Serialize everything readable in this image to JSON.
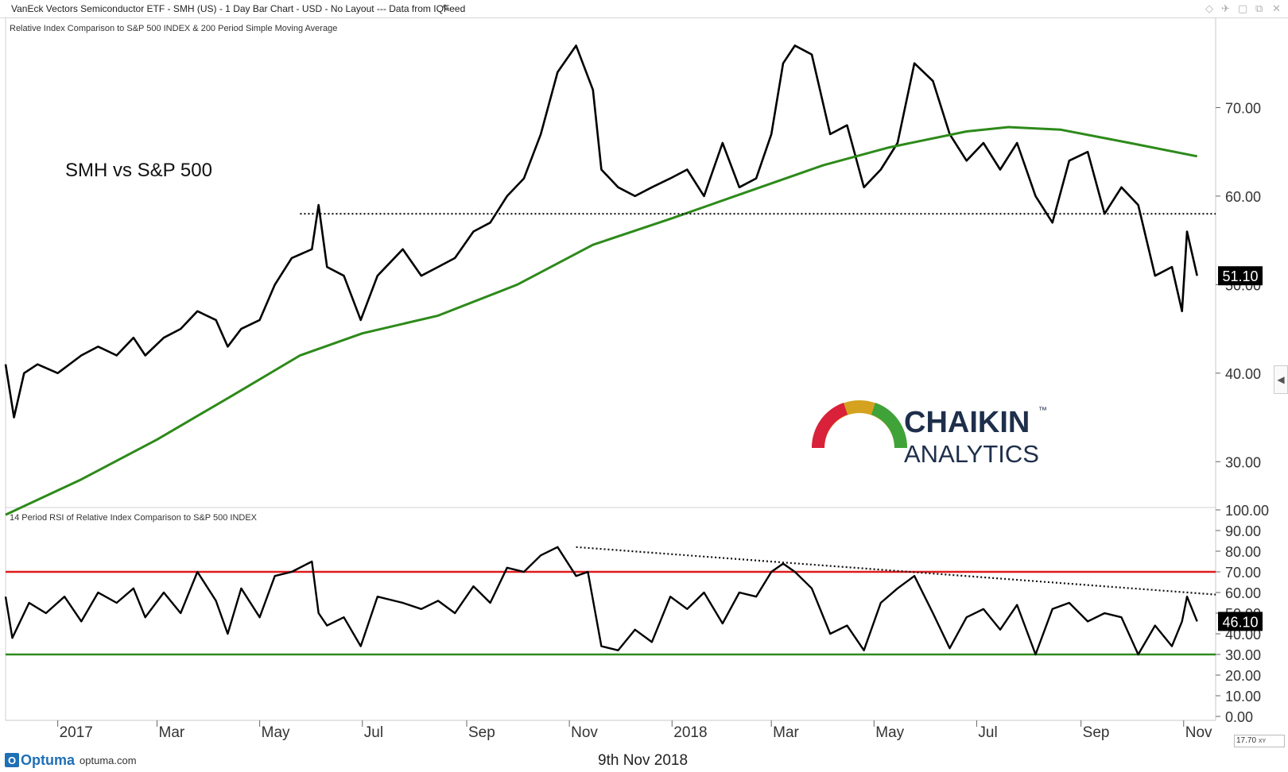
{
  "header": {
    "title": "VanEck Vectors Semiconductor ETF - SMH (US) - 1 Day Bar Chart - USD - No Layout --- Data from IQFeed",
    "icons": [
      "edit-icon",
      "diamond-icon",
      "pin-icon",
      "minimize-icon",
      "restore-icon",
      "close-icon"
    ]
  },
  "footer": {
    "brand": "Optuma",
    "url": "optuma.com",
    "date": "9th Nov 2018",
    "zoom": "17.70",
    "zoom_suffix": "XY"
  },
  "watermark": {
    "brand_line1": "CHAIKIN",
    "tm": "™",
    "brand_line2": "ANALYTICS"
  },
  "chart_data": [
    {
      "type": "line",
      "title": "Relative Index Comparison to S&P 500 INDEX & 200 Period Simple Moving Average",
      "annotation": "SMH vs S&P 500",
      "ylim": [
        25,
        80
      ],
      "yticks": [
        "70.00",
        "60.00",
        "50.00",
        "40.00",
        "30.00"
      ],
      "ytick_values": [
        70,
        60,
        50,
        40,
        30
      ],
      "last_value": "51.10",
      "grid": false,
      "series": [
        {
          "color": "#000000",
          "x": [
            "2016-12-01",
            "2016-12-06",
            "2016-12-12",
            "2016-12-20",
            "2017-01-01",
            "2017-01-15",
            "2017-01-25",
            "2017-02-05",
            "2017-02-15",
            "2017-02-22",
            "2017-03-05",
            "2017-03-15",
            "2017-03-25",
            "2017-04-05",
            "2017-04-12",
            "2017-04-20",
            "2017-05-01",
            "2017-05-10",
            "2017-05-20",
            "2017-06-01",
            "2017-06-05",
            "2017-06-10",
            "2017-06-20",
            "2017-06-30",
            "2017-07-10",
            "2017-07-25",
            "2017-08-05",
            "2017-08-15",
            "2017-08-25",
            "2017-09-05",
            "2017-09-15",
            "2017-09-25",
            "2017-10-05",
            "2017-10-15",
            "2017-10-25",
            "2017-11-05",
            "2017-11-15",
            "2017-11-20",
            "2017-11-30",
            "2017-12-10",
            "2017-12-20",
            "2017-12-31",
            "2018-01-10",
            "2018-01-20",
            "2018-01-31",
            "2018-02-10",
            "2018-02-20",
            "2018-03-01",
            "2018-03-08",
            "2018-03-15",
            "2018-03-25",
            "2018-04-05",
            "2018-04-15",
            "2018-04-25",
            "2018-05-05",
            "2018-05-15",
            "2018-05-25",
            "2018-06-05",
            "2018-06-15",
            "2018-06-25",
            "2018-07-05",
            "2018-07-15",
            "2018-07-25",
            "2018-08-05",
            "2018-08-15",
            "2018-08-25",
            "2018-09-05",
            "2018-09-15",
            "2018-09-25",
            "2018-10-05",
            "2018-10-15",
            "2018-10-25",
            "2018-10-31",
            "2018-11-03",
            "2018-11-09"
          ],
          "values": [
            41,
            35,
            40,
            41,
            40,
            42,
            43,
            42,
            44,
            42,
            44,
            45,
            47,
            46,
            43,
            45,
            46,
            50,
            53,
            54,
            59,
            52,
            51,
            46,
            51,
            54,
            51,
            52,
            53,
            56,
            57,
            60,
            62,
            67,
            74,
            77,
            72,
            63,
            61,
            60,
            61,
            62,
            63,
            60,
            66,
            61,
            62,
            67,
            75,
            77,
            76,
            67,
            68,
            61,
            63,
            66,
            75,
            73,
            67,
            64,
            66,
            63,
            66,
            60,
            57,
            64,
            65,
            58,
            61,
            59,
            51,
            52,
            47,
            56,
            51
          ]
        },
        {
          "color": "#2d8a1a",
          "x": [
            "2016-12-01",
            "2017-01-15",
            "2017-03-01",
            "2017-04-15",
            "2017-05-25",
            "2017-07-01",
            "2017-08-15",
            "2017-10-01",
            "2017-11-15",
            "2018-01-01",
            "2018-02-15",
            "2018-04-01",
            "2018-05-10",
            "2018-06-25",
            "2018-07-20",
            "2018-08-20",
            "2018-09-30",
            "2018-11-09"
          ],
          "values": [
            24.0,
            28.0,
            32.5,
            37.5,
            42.0,
            44.5,
            46.5,
            50.0,
            54.5,
            57.5,
            60.5,
            63.5,
            65.5,
            67.3,
            67.8,
            67.5,
            66.0,
            64.5
          ]
        }
      ],
      "reference_line": {
        "style": "dotted",
        "value": 58,
        "from": "2017-05-25",
        "to": "2018-11-20"
      }
    },
    {
      "type": "line",
      "title": "14 Period RSI of Relative Index Comparison to S&P 500 INDEX",
      "ylim": [
        0,
        100
      ],
      "yticks": [
        "100.00",
        "90.00",
        "80.00",
        "70.00",
        "60.00",
        "50.00",
        "40.00",
        "30.00",
        "20.00",
        "10.00",
        "0.00"
      ],
      "ytick_values": [
        100,
        90,
        80,
        70,
        60,
        50,
        40,
        30,
        20,
        10,
        0
      ],
      "last_value": "46.10",
      "series": [
        {
          "color": "#000000",
          "x": [
            "2016-12-01",
            "2016-12-05",
            "2016-12-15",
            "2016-12-25",
            "2017-01-05",
            "2017-01-15",
            "2017-01-25",
            "2017-02-05",
            "2017-02-15",
            "2017-02-22",
            "2017-03-05",
            "2017-03-15",
            "2017-03-25",
            "2017-04-05",
            "2017-04-12",
            "2017-04-20",
            "2017-05-01",
            "2017-05-10",
            "2017-05-20",
            "2017-06-01",
            "2017-06-05",
            "2017-06-10",
            "2017-06-20",
            "2017-06-30",
            "2017-07-10",
            "2017-07-25",
            "2017-08-05",
            "2017-08-15",
            "2017-08-25",
            "2017-09-05",
            "2017-09-15",
            "2017-09-25",
            "2017-10-05",
            "2017-10-15",
            "2017-10-25",
            "2017-11-05",
            "2017-11-12",
            "2017-11-20",
            "2017-11-30",
            "2017-12-10",
            "2017-12-20",
            "2017-12-31",
            "2018-01-10",
            "2018-01-20",
            "2018-01-31",
            "2018-02-10",
            "2018-02-20",
            "2018-03-01",
            "2018-03-08",
            "2018-03-15",
            "2018-03-25",
            "2018-04-05",
            "2018-04-15",
            "2018-04-25",
            "2018-05-05",
            "2018-05-15",
            "2018-05-25",
            "2018-06-05",
            "2018-06-15",
            "2018-06-25",
            "2018-07-05",
            "2018-07-15",
            "2018-07-25",
            "2018-08-05",
            "2018-08-15",
            "2018-08-25",
            "2018-09-05",
            "2018-09-15",
            "2018-09-25",
            "2018-10-05",
            "2018-10-15",
            "2018-10-25",
            "2018-10-31",
            "2018-11-03",
            "2018-11-09"
          ],
          "values": [
            58,
            38,
            55,
            50,
            58,
            46,
            60,
            55,
            62,
            48,
            60,
            50,
            70,
            56,
            40,
            62,
            48,
            68,
            70,
            75,
            50,
            44,
            48,
            34,
            58,
            55,
            52,
            56,
            50,
            63,
            55,
            72,
            70,
            78,
            82,
            68,
            70,
            34,
            32,
            42,
            36,
            58,
            52,
            60,
            45,
            60,
            58,
            70,
            74,
            70,
            62,
            40,
            44,
            32,
            55,
            62,
            68,
            50,
            33,
            48,
            52,
            42,
            54,
            30,
            52,
            55,
            46,
            50,
            48,
            30,
            44,
            34,
            46,
            58,
            46
          ]
        }
      ],
      "reference_lines": [
        {
          "value": 70,
          "color": "#e01b1b"
        },
        {
          "value": 30,
          "color": "#2d8a1a"
        }
      ],
      "trend_line": {
        "style": "dotted",
        "from": [
          "2017-11-05",
          82
        ],
        "to": [
          "2018-11-20",
          59
        ]
      }
    }
  ],
  "x_axis": {
    "labels": [
      "2017",
      "Mar",
      "May",
      "Jul",
      "Sep",
      "Nov",
      "2018",
      "Mar",
      "May",
      "Jul",
      "Sep",
      "Nov"
    ],
    "dates": [
      "2017-01-01",
      "2017-03-01",
      "2017-05-01",
      "2017-07-01",
      "2017-09-01",
      "2017-11-01",
      "2018-01-01",
      "2018-03-01",
      "2018-05-01",
      "2018-07-01",
      "2018-09-01",
      "2018-11-01"
    ],
    "start": "2016-12-01",
    "end": "2018-11-20"
  }
}
